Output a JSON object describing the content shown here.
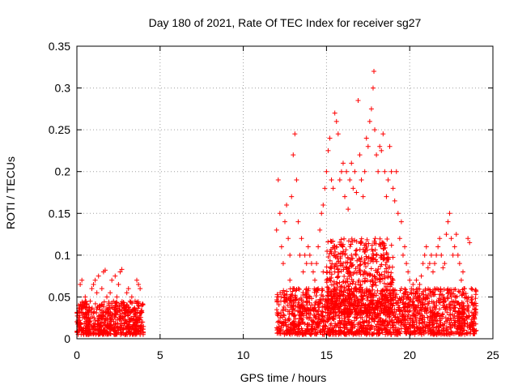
{
  "chart_data": {
    "type": "scatter",
    "title": "Day 180 of 2021, Rate Of TEC Index for receiver sg27",
    "xlabel": "GPS time / hours",
    "ylabel": "ROTI / TECUs",
    "xlim": [
      0,
      25
    ],
    "ylim": [
      0,
      0.35
    ],
    "x_ticks": [
      0,
      5,
      10,
      15,
      20,
      25
    ],
    "x_tick_labels": [
      "0",
      "5",
      "10",
      "15",
      "20",
      "25"
    ],
    "y_ticks": [
      0,
      0.05,
      0.1,
      0.15,
      0.2,
      0.25,
      0.3,
      0.35
    ],
    "y_tick_labels": [
      "0",
      "0.05",
      "0.1",
      "0.15",
      "0.2",
      "0.25",
      "0.3",
      "0.35"
    ],
    "grid": true,
    "marker": "+",
    "series": [
      {
        "name": "ROTI",
        "color": "#ff0000",
        "points": [
          [
            0.1,
            0.02
          ],
          [
            0.2,
            0.065
          ],
          [
            0.3,
            0.07
          ],
          [
            0.4,
            0.04
          ],
          [
            0.5,
            0.05
          ],
          [
            0.6,
            0.03
          ],
          [
            0.7,
            0.025
          ],
          [
            0.8,
            0.045
          ],
          [
            0.9,
            0.06
          ],
          [
            1.0,
            0.065
          ],
          [
            1.1,
            0.07
          ],
          [
            1.2,
            0.055
          ],
          [
            1.3,
            0.075
          ],
          [
            1.4,
            0.04
          ],
          [
            1.5,
            0.06
          ],
          [
            1.6,
            0.08
          ],
          [
            1.7,
            0.082
          ],
          [
            1.8,
            0.05
          ],
          [
            1.9,
            0.035
          ],
          [
            2.0,
            0.055
          ],
          [
            2.1,
            0.07
          ],
          [
            2.2,
            0.045
          ],
          [
            2.3,
            0.075
          ],
          [
            2.4,
            0.05
          ],
          [
            2.5,
            0.065
          ],
          [
            2.6,
            0.08
          ],
          [
            2.7,
            0.083
          ],
          [
            2.8,
            0.04
          ],
          [
            2.9,
            0.03
          ],
          [
            3.0,
            0.055
          ],
          [
            3.1,
            0.06
          ],
          [
            3.2,
            0.045
          ],
          [
            3.3,
            0.05
          ],
          [
            3.4,
            0.035
          ],
          [
            3.5,
            0.045
          ],
          [
            3.6,
            0.07
          ],
          [
            3.7,
            0.065
          ],
          [
            3.8,
            0.06
          ],
          [
            3.9,
            0.04
          ],
          [
            0.3,
            0.01
          ],
          [
            1.0,
            0.015
          ],
          [
            2.0,
            0.012
          ],
          [
            3.0,
            0.018
          ],
          [
            3.8,
            0.01
          ],
          [
            0.6,
            0.015
          ],
          [
            1.5,
            0.02
          ],
          [
            2.5,
            0.01
          ],
          [
            3.5,
            0.015
          ],
          [
            0.1,
            0.04
          ],
          [
            3.95,
            0.02
          ],
          [
            12.0,
            0.13
          ],
          [
            12.1,
            0.19
          ],
          [
            12.2,
            0.15
          ],
          [
            12.3,
            0.11
          ],
          [
            12.4,
            0.09
          ],
          [
            12.5,
            0.14
          ],
          [
            12.6,
            0.16
          ],
          [
            12.7,
            0.12
          ],
          [
            12.8,
            0.1
          ],
          [
            12.9,
            0.17
          ],
          [
            13.0,
            0.22
          ],
          [
            13.1,
            0.245
          ],
          [
            13.2,
            0.19
          ],
          [
            13.3,
            0.14
          ],
          [
            13.4,
            0.1
          ],
          [
            13.5,
            0.12
          ],
          [
            13.6,
            0.08
          ],
          [
            13.7,
            0.1
          ],
          [
            13.8,
            0.09
          ],
          [
            13.9,
            0.11
          ],
          [
            14.0,
            0.1
          ],
          [
            14.1,
            0.09
          ],
          [
            14.2,
            0.08
          ],
          [
            14.3,
            0.07
          ],
          [
            14.4,
            0.09
          ],
          [
            14.5,
            0.11
          ],
          [
            14.6,
            0.13
          ],
          [
            14.7,
            0.15
          ],
          [
            14.8,
            0.16
          ],
          [
            14.9,
            0.18
          ],
          [
            15.0,
            0.2
          ],
          [
            15.1,
            0.225
          ],
          [
            15.2,
            0.24
          ],
          [
            15.3,
            0.19
          ],
          [
            15.4,
            0.18
          ],
          [
            15.5,
            0.27
          ],
          [
            15.6,
            0.26
          ],
          [
            15.7,
            0.245
          ],
          [
            15.8,
            0.19
          ],
          [
            15.9,
            0.2
          ],
          [
            16.0,
            0.21
          ],
          [
            16.1,
            0.17
          ],
          [
            16.2,
            0.2
          ],
          [
            16.3,
            0.155
          ],
          [
            16.4,
            0.19
          ],
          [
            16.5,
            0.21
          ],
          [
            16.6,
            0.18
          ],
          [
            16.7,
            0.2
          ],
          [
            16.8,
            0.175
          ],
          [
            16.9,
            0.285
          ],
          [
            17.0,
            0.22
          ],
          [
            17.1,
            0.19
          ],
          [
            17.2,
            0.17
          ],
          [
            17.3,
            0.2
          ],
          [
            17.4,
            0.24
          ],
          [
            17.5,
            0.23
          ],
          [
            17.6,
            0.26
          ],
          [
            17.7,
            0.275
          ],
          [
            17.8,
            0.3
          ],
          [
            17.85,
            0.32
          ],
          [
            17.9,
            0.25
          ],
          [
            18.0,
            0.22
          ],
          [
            18.1,
            0.2
          ],
          [
            18.2,
            0.23
          ],
          [
            18.3,
            0.225
          ],
          [
            18.4,
            0.245
          ],
          [
            18.5,
            0.2
          ],
          [
            18.6,
            0.17
          ],
          [
            18.7,
            0.19
          ],
          [
            18.8,
            0.23
          ],
          [
            18.9,
            0.2
          ],
          [
            19.0,
            0.18
          ],
          [
            19.1,
            0.165
          ],
          [
            19.2,
            0.2
          ],
          [
            19.3,
            0.15
          ],
          [
            19.4,
            0.12
          ],
          [
            19.5,
            0.14
          ],
          [
            19.6,
            0.1
          ],
          [
            19.7,
            0.11
          ],
          [
            19.8,
            0.09
          ],
          [
            19.9,
            0.08
          ],
          [
            20.0,
            0.07
          ],
          [
            20.1,
            0.06
          ],
          [
            20.2,
            0.065
          ],
          [
            20.3,
            0.05
          ],
          [
            20.4,
            0.07
          ],
          [
            20.5,
            0.06
          ],
          [
            20.6,
            0.065
          ],
          [
            20.7,
            0.075
          ],
          [
            20.8,
            0.09
          ],
          [
            20.9,
            0.1
          ],
          [
            21.0,
            0.11
          ],
          [
            21.1,
            0.085
          ],
          [
            21.2,
            0.09
          ],
          [
            21.3,
            0.1
          ],
          [
            21.4,
            0.08
          ],
          [
            21.5,
            0.09
          ],
          [
            21.6,
            0.1
          ],
          [
            21.7,
            0.11
          ],
          [
            21.8,
            0.12
          ],
          [
            21.9,
            0.1
          ],
          [
            22.0,
            0.085
          ],
          [
            22.1,
            0.09
          ],
          [
            22.2,
            0.125
          ],
          [
            22.3,
            0.14
          ],
          [
            22.4,
            0.15
          ],
          [
            22.5,
            0.12
          ],
          [
            22.6,
            0.1
          ],
          [
            22.7,
            0.11
          ],
          [
            22.8,
            0.125
          ],
          [
            22.9,
            0.1
          ],
          [
            23.0,
            0.09
          ],
          [
            23.1,
            0.07
          ],
          [
            23.2,
            0.08
          ],
          [
            23.3,
            0.06
          ],
          [
            23.4,
            0.05
          ],
          [
            23.5,
            0.12
          ],
          [
            23.6,
            0.115
          ],
          [
            23.7,
            0.06
          ],
          [
            23.8,
            0.04
          ],
          [
            23.9,
            0.035
          ],
          [
            12.5,
            0.05
          ],
          [
            13.0,
            0.06
          ],
          [
            13.5,
            0.04
          ],
          [
            14.0,
            0.05
          ],
          [
            14.5,
            0.06
          ],
          [
            15.0,
            0.07
          ],
          [
            15.5,
            0.08
          ],
          [
            16.0,
            0.09
          ],
          [
            16.5,
            0.1
          ],
          [
            17.0,
            0.08
          ],
          [
            17.5,
            0.09
          ],
          [
            18.0,
            0.1
          ],
          [
            18.5,
            0.08
          ],
          [
            19.0,
            0.07
          ],
          [
            19.5,
            0.06
          ],
          [
            20.0,
            0.04
          ],
          [
            20.5,
            0.03
          ],
          [
            21.0,
            0.05
          ],
          [
            21.5,
            0.06
          ],
          [
            22.0,
            0.04
          ],
          [
            22.5,
            0.05
          ],
          [
            23.0,
            0.03
          ],
          [
            23.5,
            0.04
          ],
          [
            12.2,
            0.02
          ],
          [
            13.2,
            0.015
          ],
          [
            14.2,
            0.02
          ],
          [
            15.2,
            0.025
          ],
          [
            16.2,
            0.03
          ],
          [
            17.2,
            0.02
          ],
          [
            18.2,
            0.025
          ],
          [
            19.2,
            0.02
          ],
          [
            20.2,
            0.015
          ],
          [
            21.2,
            0.02
          ],
          [
            22.2,
            0.01
          ],
          [
            23.2,
            0.015
          ],
          [
            23.9,
            0.01
          ],
          [
            12.8,
            0.07
          ],
          [
            13.8,
            0.06
          ],
          [
            14.8,
            0.08
          ]
        ],
        "dense_bands": [
          {
            "x_range": [
              0.0,
              4.0
            ],
            "y_range": [
              0.005,
              0.045
            ]
          },
          {
            "x_range": [
              12.0,
              24.0
            ],
            "y_range": [
              0.005,
              0.06
            ]
          },
          {
            "x_range": [
              15.0,
              19.0
            ],
            "y_range": [
              0.03,
              0.12
            ]
          }
        ]
      }
    ]
  }
}
